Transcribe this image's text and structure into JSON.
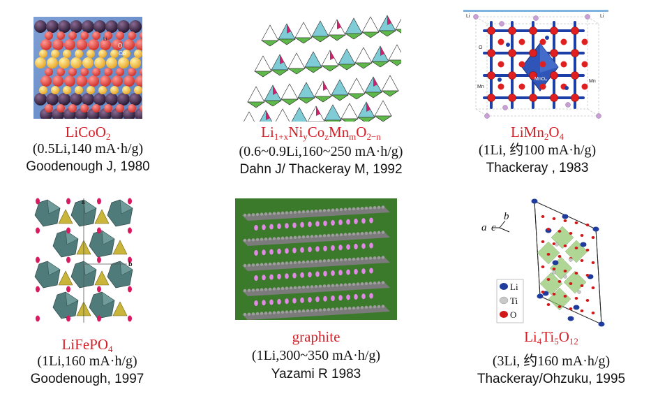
{
  "materials": [
    {
      "formula": [
        "LiCoO",
        {
          "sub": "2"
        }
      ],
      "capacity": "(0.5Li,140 mA·h/g)",
      "author": "Goodenough J, 1980",
      "labels": {
        "li": "Li",
        "o": "O",
        "co": "Co"
      }
    },
    {
      "formula": [
        "Li",
        {
          "sub": "1+x"
        },
        "Ni",
        {
          "sub": "y"
        },
        "Co",
        {
          "sub": "z"
        },
        "Mn",
        {
          "sub": "m"
        },
        "O",
        {
          "sub": "2−n"
        }
      ],
      "capacity": "(0.6~0.9Li,160~250 mA·h/g)",
      "author": "Dahn J/ Thackeray M, 1992"
    },
    {
      "formula": [
        "LiMn",
        {
          "sub": "2"
        },
        "O",
        {
          "sub": "4"
        }
      ],
      "capacity": "(1Li, 约100 mA·h/g)",
      "author": "Thackeray , 1983",
      "labels": {
        "li_left": "Li",
        "li_right": "Li",
        "o": "O",
        "mn_left": "Mn",
        "mn_right": "Mn",
        "mno6": "MnO₆"
      }
    },
    {
      "formula": [
        "LiFePO",
        {
          "sub": "4"
        }
      ],
      "capacity": "(1Li,160 mA·h/g)",
      "author": "Goodenough, 1997",
      "labels": {
        "b": "b",
        "a": "a"
      }
    },
    {
      "formula": [
        "graphite"
      ],
      "capacity": "(1Li,300~350 mA·h/g)",
      "author": "Yazami R 1983"
    },
    {
      "formula": [
        "Li",
        {
          "sub": "4"
        },
        "Ti",
        {
          "sub": "5"
        },
        "O",
        {
          "sub": "12"
        }
      ],
      "capacity": "(3Li, 约160 mA·h/g)",
      "author": "Thackeray/Ohzuku, 1995",
      "axes": {
        "a": "a",
        "c": "c",
        "b": "b"
      },
      "legend": [
        {
          "label": "Li",
          "color": "#1f3b9c"
        },
        {
          "label": "Ti",
          "color": "#c8c8c8"
        },
        {
          "label": "O",
          "color": "#d01818"
        }
      ]
    }
  ],
  "colors": {
    "caption_red": "#d42027",
    "text": "#111111"
  }
}
